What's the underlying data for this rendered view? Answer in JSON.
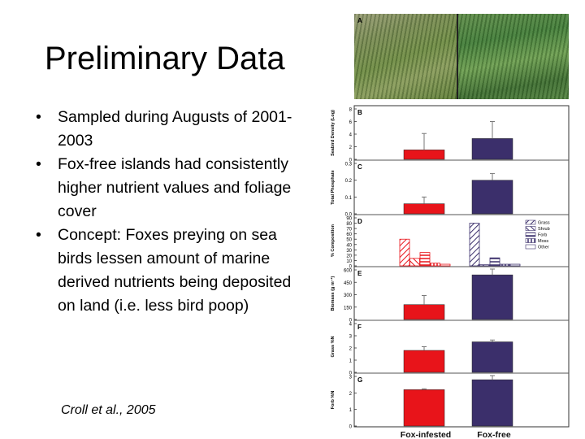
{
  "slide": {
    "title": "Preliminary Data",
    "bullets": [
      "Sampled during Augusts of 2001-2003",
      "Fox-free islands had consistently higher nutrient values and foliage cover",
      "Concept: Foxes preying on sea birds lessen amount of marine derived nutrients being deposited on land (i.e. less bird poop)"
    ],
    "citation": "Croll et al., 2005",
    "bullet_glyph": "•"
  },
  "figure": {
    "photo_panel_label": "A",
    "colors": {
      "fox_infested": "#e8141a",
      "fox_free": "#3b2f6b",
      "hatch": "#3b2f6b"
    }
  },
  "chart_data": [
    {
      "panel": "B",
      "type": "bar",
      "categories": [
        "Fox-infested",
        "Fox-free"
      ],
      "values": [
        1.5,
        3.3
      ],
      "errors": [
        2.6,
        2.7
      ],
      "ylabel": "Seabird Density (Log)",
      "ylim": [
        0,
        8
      ],
      "ticks": [
        "0",
        "2",
        "4",
        "6",
        "8"
      ],
      "tick_values": [
        0,
        2,
        4,
        6,
        8
      ]
    },
    {
      "panel": "C",
      "type": "bar",
      "categories": [
        "Fox-infested",
        "Fox-free"
      ],
      "values": [
        0.06,
        0.2
      ],
      "errors": [
        0.04,
        0.04
      ],
      "ylabel": "Total Phosphate",
      "ylim": [
        0,
        0.3
      ],
      "ticks": [
        "0.0",
        "0.1",
        "0.2",
        "0.3"
      ],
      "tick_values": [
        0,
        0.1,
        0.2,
        0.3
      ]
    },
    {
      "panel": "D",
      "type": "bar",
      "categories": [
        "Fox-infested",
        "Fox-free"
      ],
      "series": [
        {
          "name": "Grass",
          "values": [
            50,
            80
          ]
        },
        {
          "name": "Shrub",
          "values": [
            14,
            2
          ]
        },
        {
          "name": "Forb",
          "values": [
            25,
            15
          ]
        },
        {
          "name": "Moss",
          "values": [
            5,
            3
          ]
        },
        {
          "name": "Other",
          "values": [
            3,
            3
          ]
        }
      ],
      "ylabel": "% Composition",
      "ylim": [
        0,
        90
      ],
      "ticks": [
        "0",
        "10",
        "20",
        "30",
        "40",
        "50",
        "60",
        "70",
        "80",
        "90"
      ],
      "tick_values": [
        0,
        10,
        20,
        30,
        40,
        50,
        60,
        70,
        80,
        90
      ],
      "legend_position": "right"
    },
    {
      "panel": "E",
      "type": "bar",
      "categories": [
        "Fox-infested",
        "Fox-free"
      ],
      "values": [
        180,
        540
      ],
      "errors": [
        110,
        70
      ],
      "ylabel": "Biomass (g m⁻²)",
      "ylim": [
        0,
        600
      ],
      "ticks": [
        "0",
        "150",
        "300",
        "450",
        "600"
      ],
      "tick_values": [
        0,
        150,
        300,
        450,
        600
      ]
    },
    {
      "panel": "F",
      "type": "bar",
      "categories": [
        "Fox-infested",
        "Fox-free"
      ],
      "values": [
        1.8,
        2.5
      ],
      "errors": [
        0.3,
        0.15
      ],
      "ylabel": "Grass %N",
      "ylim": [
        0,
        4
      ],
      "ticks": [
        "0",
        "1",
        "2",
        "3",
        "4"
      ],
      "tick_values": [
        0,
        1,
        2,
        3,
        4
      ]
    },
    {
      "panel": "G",
      "type": "bar",
      "categories": [
        "Fox-infested",
        "Fox-free"
      ],
      "values": [
        2.2,
        2.8
      ],
      "errors": [
        0.05,
        0.25
      ],
      "ylabel": "Forb %N",
      "ylim": [
        0,
        3
      ],
      "ticks": [
        "0",
        "1",
        "2",
        "3"
      ],
      "tick_values": [
        0,
        1,
        2,
        3
      ]
    }
  ]
}
